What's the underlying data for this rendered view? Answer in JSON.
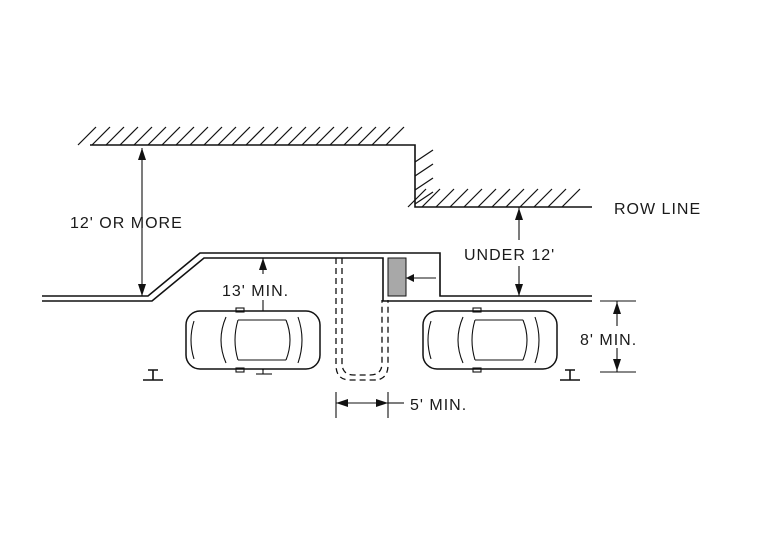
{
  "labels": {
    "twelve_or_more": "12' OR MORE",
    "row_line": "ROW LINE",
    "under_12": "UNDER 12'",
    "thirteen_min": "13' MIN.",
    "eight_min": "8' MIN.",
    "five_min": "5' MIN."
  },
  "colors": {
    "line": "#111111",
    "fill_block": "#a8a8a8",
    "background": "#ffffff"
  },
  "icons": [
    "car-left",
    "car-right",
    "wheel-stop-left",
    "wheel-stop-right",
    "bollard-block"
  ]
}
